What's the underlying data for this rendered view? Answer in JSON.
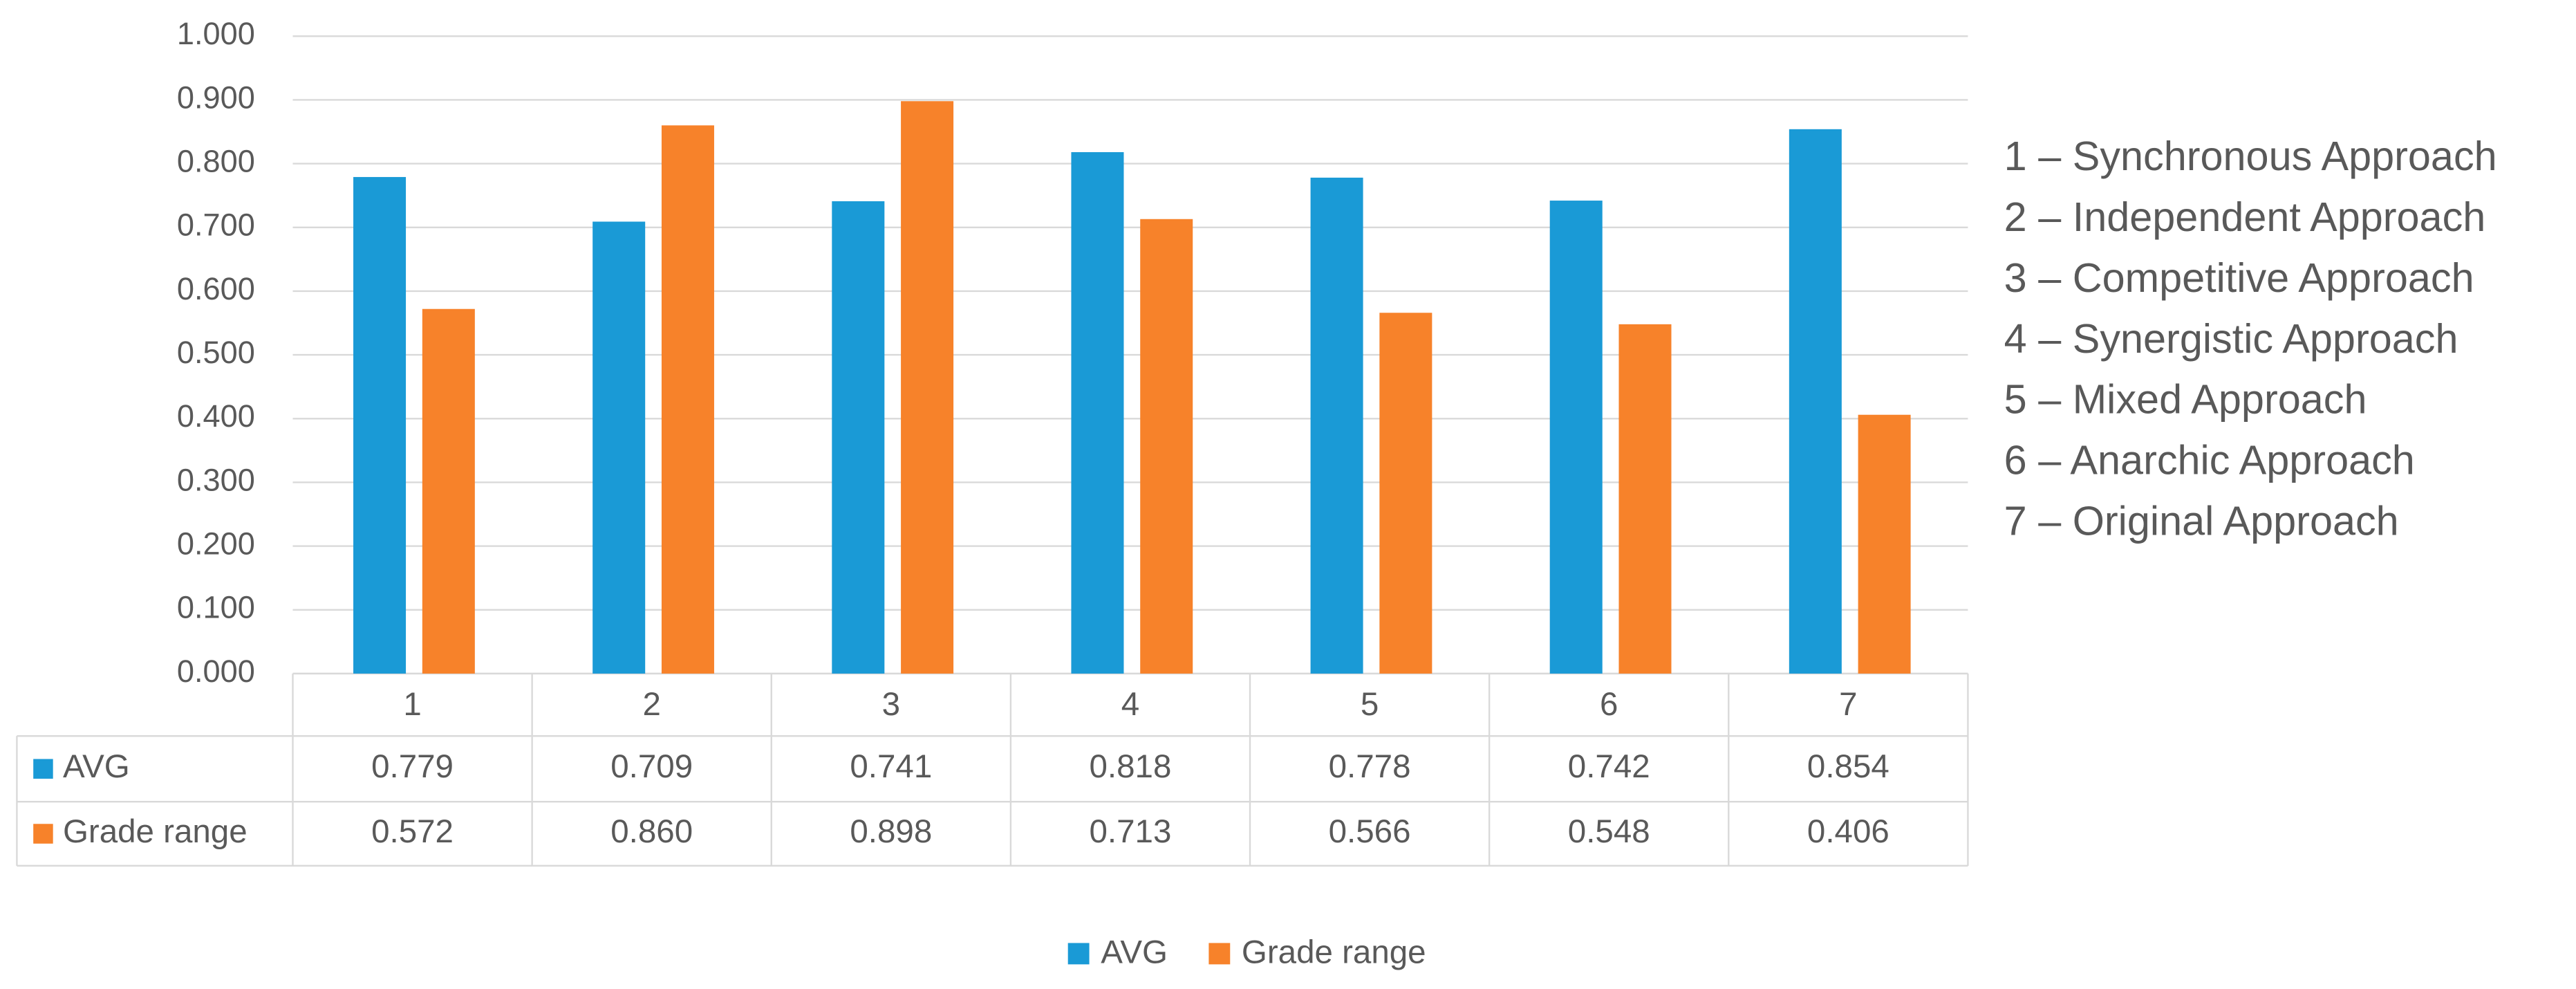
{
  "chart_data": {
    "type": "bar",
    "categories": [
      "1",
      "2",
      "3",
      "4",
      "5",
      "6",
      "7"
    ],
    "series": [
      {
        "name": "AVG",
        "color": "#1a9ad6",
        "values": [
          0.779,
          0.709,
          0.741,
          0.818,
          0.778,
          0.742,
          0.854
        ],
        "value_labels": [
          "0.779",
          "0.709",
          "0.741",
          "0.818",
          "0.778",
          "0.742",
          "0.854"
        ]
      },
      {
        "name": "Grade range",
        "color": "#f7822a",
        "values": [
          0.572,
          0.86,
          0.898,
          0.713,
          0.566,
          0.548,
          0.406
        ],
        "value_labels": [
          "0.572",
          "0.860",
          "0.898",
          "0.713",
          "0.566",
          "0.548",
          "0.406"
        ]
      }
    ],
    "ylim": [
      0,
      1
    ],
    "yticks": [
      {
        "value": 0,
        "label": "0.000"
      },
      {
        "value": 0.1,
        "label": "0.100"
      },
      {
        "value": 0.2,
        "label": "0.200"
      },
      {
        "value": 0.3,
        "label": "0.300"
      },
      {
        "value": 0.4,
        "label": "0.400"
      },
      {
        "value": 0.5,
        "label": "0.500"
      },
      {
        "value": 0.6,
        "label": "0.600"
      },
      {
        "value": 0.7,
        "label": "0.700"
      },
      {
        "value": 0.8,
        "label": "0.800"
      },
      {
        "value": 0.9,
        "label": "0.900"
      },
      {
        "value": 1,
        "label": "1.000"
      }
    ],
    "grid": true,
    "data_table": true,
    "legend": "bottom",
    "category_descriptions": [
      "1 – Synchronous Approach",
      "2 – Independent Approach",
      "3 – Competitive Approach",
      "4 – Synergistic Approach",
      "5 – Mixed Approach",
      "6 – Anarchic Approach",
      "7 – Original Approach"
    ]
  }
}
